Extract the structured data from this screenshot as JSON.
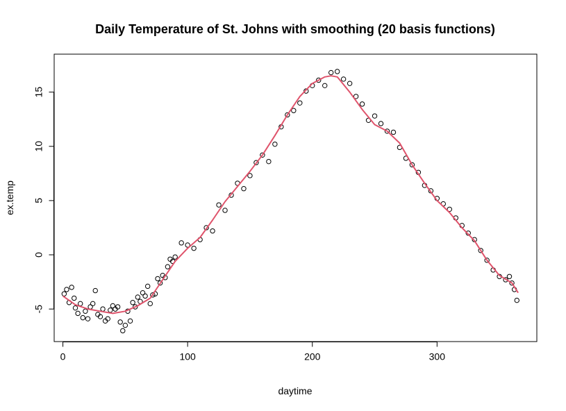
{
  "chart_data": {
    "type": "scatter",
    "title": "Daily Temperature of St. Johns with smoothing (20 basis functions)",
    "xlabel": "daytime",
    "ylabel": "ex.temp",
    "xlim": [
      -7,
      380
    ],
    "ylim": [
      -8,
      18.5
    ],
    "x_ticks": [
      0,
      100,
      200,
      300
    ],
    "x_tick_labels": [
      "0",
      "100",
      "200",
      "300"
    ],
    "y_ticks": [
      -5,
      0,
      5,
      10,
      15
    ],
    "y_tick_labels": [
      "-5",
      "0",
      "5",
      "10",
      "15"
    ],
    "grid": false,
    "legend": "none",
    "series": [
      {
        "kind": "points",
        "marker": "open-circle",
        "color": "#000000",
        "x": [
          1,
          3,
          5,
          7,
          9,
          10,
          12,
          14,
          16,
          18,
          20,
          22,
          24,
          26,
          28,
          30,
          32,
          34,
          36,
          38,
          40,
          42,
          44,
          46,
          48,
          50,
          52,
          54,
          56,
          58,
          60,
          62,
          64,
          66,
          68,
          70,
          72,
          74,
          76,
          78,
          80,
          82,
          84,
          86,
          88,
          90,
          95,
          100,
          105,
          110,
          115,
          120,
          125,
          130,
          135,
          140,
          145,
          150,
          155,
          160,
          165,
          170,
          175,
          180,
          185,
          190,
          195,
          200,
          205,
          210,
          215,
          220,
          225,
          230,
          235,
          240,
          245,
          250,
          255,
          260,
          265,
          270,
          275,
          280,
          285,
          290,
          295,
          300,
          305,
          310,
          315,
          320,
          325,
          330,
          335,
          340,
          345,
          350,
          355,
          358,
          360,
          362,
          364
        ],
        "y": [
          -3.6,
          -3.2,
          -4.4,
          -3.0,
          -4.0,
          -4.9,
          -5.4,
          -4.5,
          -5.8,
          -5.2,
          -5.9,
          -4.8,
          -4.5,
          -3.3,
          -5.5,
          -5.7,
          -5.0,
          -6.1,
          -5.9,
          -5.1,
          -4.7,
          -5.0,
          -4.8,
          -6.2,
          -7.0,
          -6.5,
          -5.2,
          -6.1,
          -4.4,
          -4.8,
          -3.9,
          -4.3,
          -3.5,
          -3.8,
          -2.9,
          -4.5,
          -3.7,
          -3.6,
          -2.2,
          -2.6,
          -1.9,
          -2.1,
          -1.1,
          -0.4,
          -0.6,
          -0.2,
          1.1,
          0.9,
          0.6,
          1.4,
          2.5,
          2.2,
          4.6,
          4.1,
          5.5,
          6.6,
          6.1,
          7.3,
          8.5,
          9.2,
          8.6,
          10.2,
          11.8,
          12.9,
          13.3,
          14.0,
          15.1,
          15.6,
          16.1,
          15.6,
          16.8,
          16.9,
          16.2,
          15.8,
          14.6,
          13.9,
          12.4,
          12.8,
          12.1,
          11.4,
          11.3,
          9.9,
          8.9,
          8.3,
          7.6,
          6.4,
          5.9,
          5.2,
          4.7,
          4.2,
          3.4,
          2.7,
          2.0,
          1.4,
          0.4,
          -0.5,
          -1.4,
          -2.0,
          -2.3,
          -2.0,
          -2.6,
          -3.2,
          -4.2
        ]
      },
      {
        "kind": "line",
        "color": "#DF536B",
        "x": [
          0,
          10,
          20,
          30,
          40,
          50,
          60,
          70,
          80,
          90,
          100,
          110,
          120,
          130,
          140,
          150,
          160,
          170,
          180,
          190,
          200,
          210,
          215,
          220,
          230,
          240,
          250,
          260,
          270,
          280,
          290,
          300,
          310,
          320,
          330,
          340,
          350,
          360,
          365
        ],
        "y": [
          -3.8,
          -4.6,
          -5.0,
          -5.2,
          -5.4,
          -5.2,
          -4.7,
          -4.0,
          -2.3,
          -0.6,
          0.6,
          1.6,
          3.2,
          4.9,
          6.3,
          7.7,
          9.2,
          11.0,
          12.9,
          14.6,
          15.8,
          16.4,
          16.5,
          16.4,
          15.0,
          13.4,
          12.0,
          11.4,
          10.3,
          8.3,
          6.6,
          5.0,
          3.9,
          2.5,
          1.3,
          -0.5,
          -1.9,
          -2.6,
          -3.5
        ]
      }
    ]
  }
}
